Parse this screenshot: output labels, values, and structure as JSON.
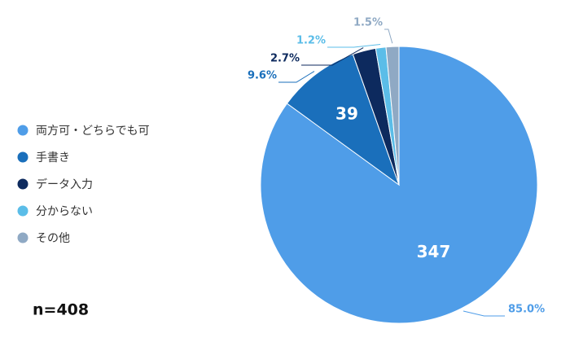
{
  "chart_data": {
    "type": "pie",
    "categories": [
      "両方可・どちらでも可",
      "手書き",
      "データ入力",
      "分からない",
      "その他"
    ],
    "values": [
      85.0,
      9.6,
      2.7,
      1.2,
      1.5
    ],
    "value_labels": [
      "85.0%",
      "9.6%",
      "2.7%",
      "1.2%",
      "1.5%"
    ],
    "counts": [
      347,
      39,
      null,
      null,
      null
    ],
    "colors": [
      "#4f9de8",
      "#1a6fbb",
      "#0d2a5e",
      "#5bbde8",
      "#8fa9c4"
    ],
    "annotation": "n=408",
    "legend": "left"
  }
}
